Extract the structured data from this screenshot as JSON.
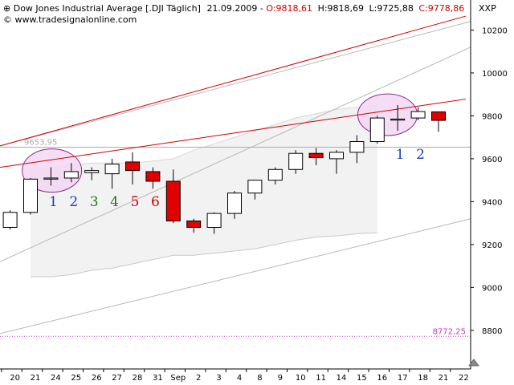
{
  "header": {
    "title": "Dow Jones Industrial Average [.DJI  Täglich]",
    "date": "21.09.2009",
    "open": "O:9818,61",
    "high": "H:9818,69",
    "low": "L:9725,88",
    "close": "C:9778,86",
    "symbol": "XXP",
    "source": "© www.tradesignalonline.com"
  },
  "chart_data": {
    "type": "candlestick",
    "title": "Dow Jones Industrial Average [.DJI  Täglich]",
    "y_axis_position": "right",
    "ylim": [
      8620,
      10340
    ],
    "y_ticks": [
      8800,
      9000,
      9200,
      9400,
      9600,
      9800,
      10000,
      10200
    ],
    "x_labels": [
      "20",
      "21",
      "24",
      "25",
      "26",
      "27",
      "28",
      "31",
      "Sep",
      "2",
      "3",
      "4",
      "8",
      "9",
      "10",
      "11",
      "14",
      "15",
      "16",
      "17",
      "18",
      "21",
      "22"
    ],
    "candles": [
      {
        "date": "20",
        "open": 9280,
        "high": 9360,
        "low": 9270,
        "close": 9350
      },
      {
        "date": "21",
        "open": 9350,
        "high": 9510,
        "low": 9340,
        "close": 9505
      },
      {
        "date": "24",
        "open": 9505,
        "high": 9560,
        "low": 9475,
        "close": 9510
      },
      {
        "date": "25",
        "open": 9510,
        "high": 9580,
        "low": 9490,
        "close": 9540
      },
      {
        "date": "26",
        "open": 9535,
        "high": 9560,
        "low": 9500,
        "close": 9545
      },
      {
        "date": "27",
        "open": 9530,
        "high": 9600,
        "low": 9460,
        "close": 9575
      },
      {
        "date": "28",
        "open": 9585,
        "high": 9630,
        "low": 9480,
        "close": 9545
      },
      {
        "date": "31",
        "open": 9540,
        "high": 9560,
        "low": 9460,
        "close": 9495
      },
      {
        "date": "Sep",
        "open": 9495,
        "high": 9550,
        "low": 9300,
        "close": 9310
      },
      {
        "date": "2",
        "open": 9310,
        "high": 9320,
        "low": 9255,
        "close": 9280
      },
      {
        "date": "3",
        "open": 9280,
        "high": 9350,
        "low": 9250,
        "close": 9345
      },
      {
        "date": "4",
        "open": 9345,
        "high": 9450,
        "low": 9320,
        "close": 9440
      },
      {
        "date": "8",
        "open": 9440,
        "high": 9500,
        "low": 9410,
        "close": 9500
      },
      {
        "date": "9",
        "open": 9500,
        "high": 9560,
        "low": 9480,
        "close": 9550
      },
      {
        "date": "10",
        "open": 9550,
        "high": 9640,
        "low": 9530,
        "close": 9625
      },
      {
        "date": "11",
        "open": 9625,
        "high": 9650,
        "low": 9570,
        "close": 9605
      },
      {
        "date": "14",
        "open": 9600,
        "high": 9640,
        "low": 9530,
        "close": 9630
      },
      {
        "date": "15",
        "open": 9630,
        "high": 9710,
        "low": 9580,
        "close": 9680
      },
      {
        "date": "16",
        "open": 9680,
        "high": 9800,
        "low": 9670,
        "close": 9790
      },
      {
        "date": "17",
        "open": 9780,
        "high": 9850,
        "low": 9730,
        "close": 9785
      },
      {
        "date": "18",
        "open": 9790,
        "high": 9840,
        "low": 9780,
        "close": 9820
      },
      {
        "date": "21",
        "open": 9818.61,
        "high": 9818.69,
        "low": 9725.88,
        "close": 9778.86
      }
    ],
    "horizontal_lines": [
      {
        "value": 9653.95,
        "label": "9653,95",
        "color": "#aaaaaa"
      },
      {
        "value": 8772.25,
        "label": "8772,25",
        "color": "#cc33cc",
        "style": "dotted"
      }
    ],
    "annotations": [
      {
        "text": "1",
        "color": "#1a3fbf",
        "bar": "24"
      },
      {
        "text": "2",
        "color": "#1a3fbf",
        "bar": "25"
      },
      {
        "text": "3",
        "color": "#1a7a1a",
        "bar": "26"
      },
      {
        "text": "4",
        "color": "#1a7a1a",
        "bar": "27"
      },
      {
        "text": "5",
        "color": "#cc0000",
        "bar": "28"
      },
      {
        "text": "6",
        "color": "#cc0000",
        "bar": "31"
      },
      {
        "text": "1",
        "color": "#1a3fbf",
        "bar": "17"
      },
      {
        "text": "2",
        "color": "#1a3fbf",
        "bar": "18"
      }
    ],
    "colors": {
      "up_candle": "#ffffff",
      "down_candle": "#e00000",
      "trendline": "#cc0000",
      "ellipse": "#f5d7f5",
      "band": "#f2f2f2"
    }
  }
}
